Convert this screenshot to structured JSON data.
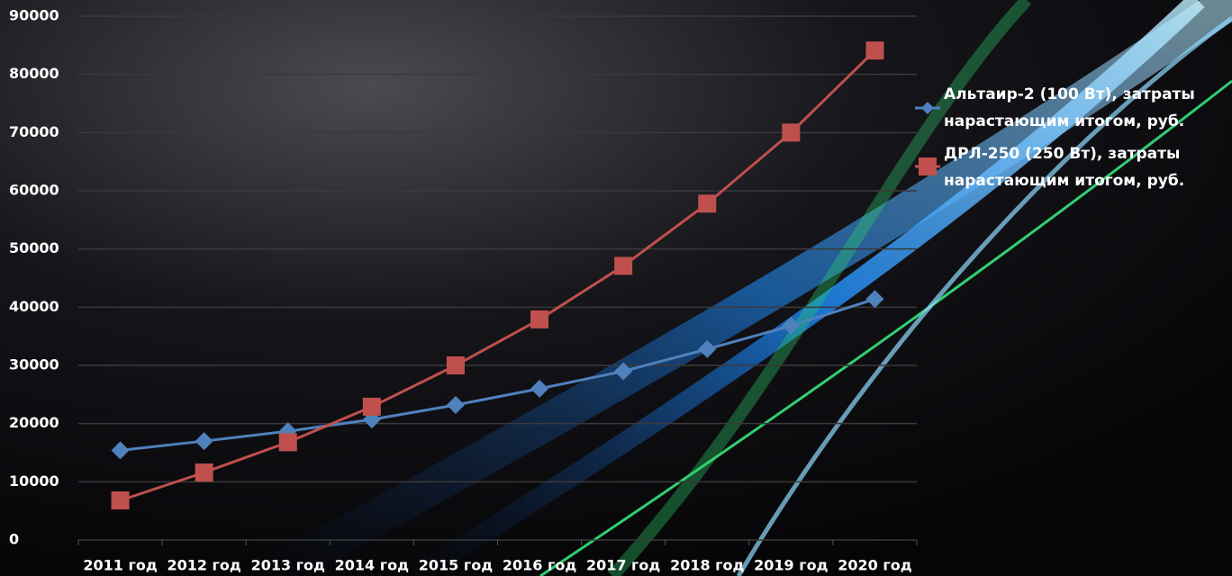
{
  "chart_data": {
    "type": "line",
    "categories": [
      "2011 год",
      "2012 год",
      "2013 год",
      "2014 год",
      "2015 год",
      "2016 год",
      "2017 год",
      "2018 год",
      "2019 год",
      "2020 год"
    ],
    "series": [
      {
        "name": "Альтаир-2 (100 Вт), затраты нарастающим итогом, руб.",
        "color": "#4f81bd",
        "marker": "diamond",
        "values": [
          15400,
          17000,
          18700,
          20700,
          23200,
          26000,
          29000,
          32800,
          36800,
          41400
        ]
      },
      {
        "name": "ДРЛ-250 (250 Вт), затраты нарастающим итогом, руб.",
        "color": "#c0504d",
        "marker": "square",
        "values": [
          6800,
          11600,
          16800,
          22900,
          30000,
          37900,
          47100,
          57800,
          70000,
          84100
        ]
      }
    ],
    "ylim": [
      0,
      90000
    ],
    "yticks": [
      0,
      10000,
      20000,
      30000,
      40000,
      50000,
      60000,
      70000,
      80000,
      90000
    ],
    "grid": true
  }
}
